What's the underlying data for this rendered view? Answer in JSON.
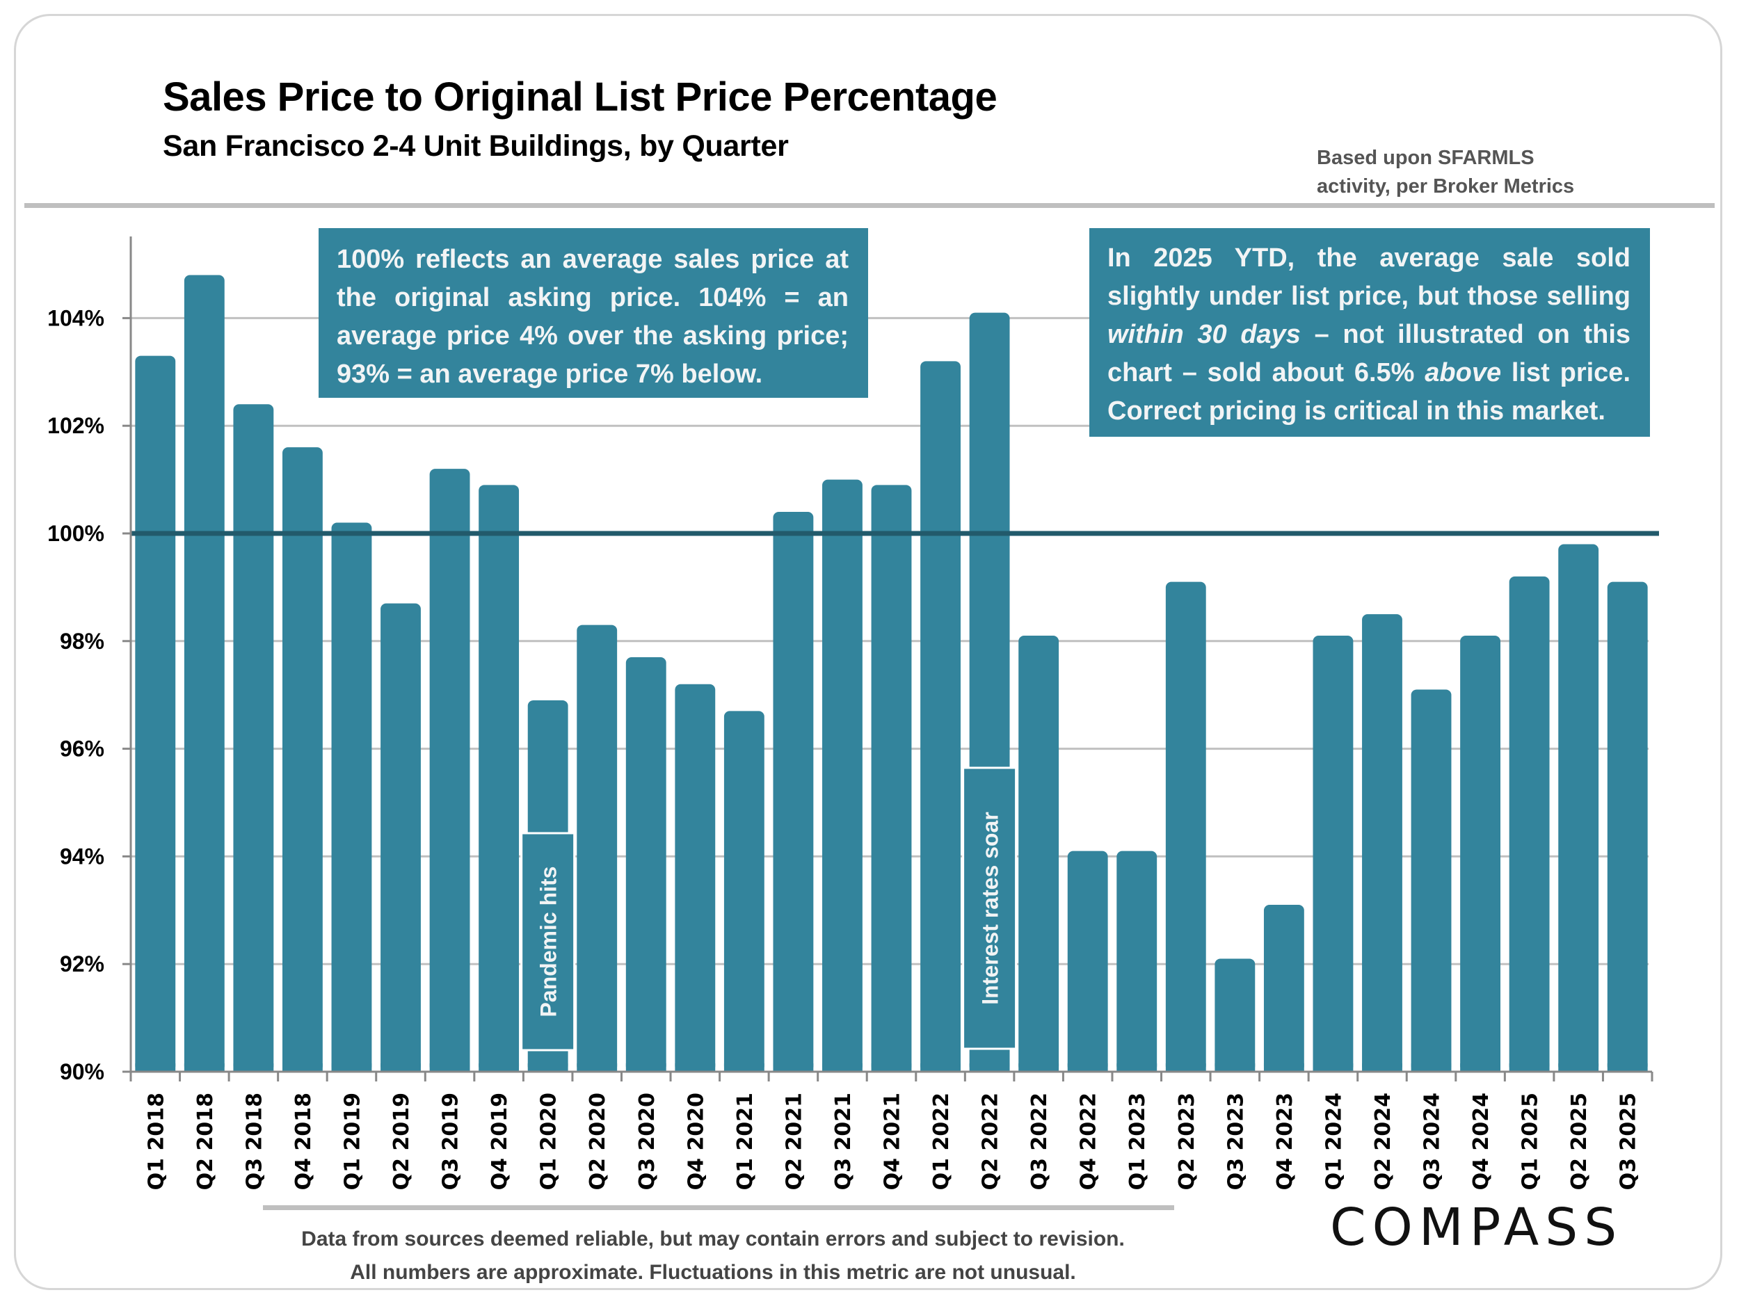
{
  "header": {
    "title": "Sales Price to Original List Price Percentage",
    "subtitle": "San Francisco 2-4 Unit Buildings, by Quarter",
    "source_line1": "Based upon SFARMLS",
    "source_line2": "activity, per Broker Metrics"
  },
  "notes": {
    "left": "100% reflects an average sales price at the original asking price. 104% = an average price 4% over the asking price; 93% = an average price 7% below.",
    "right_part1": "In 2025 YTD, the average sale sold slightly under list price, but those selling ",
    "right_italic1": "within 30 days",
    "right_part2": " – not illustrated on this chart – sold about 6.5% ",
    "right_italic2": "above",
    "right_part3": " list price. Correct pricing is critical in this market."
  },
  "footer": {
    "line1": "Data from sources deemed reliable, but may contain errors and subject to revision.",
    "line2": "All numbers are approximate. Fluctuations in this metric are not unusual.",
    "logo": "COMPASS"
  },
  "colors": {
    "bar": "#33849c",
    "reference_line": "#225a6b",
    "gridline": "#c0c0c0",
    "axis": "#888888",
    "annotation_box": "#33849c"
  },
  "chart_data": {
    "type": "bar",
    "title": "Sales Price to Original List Price Percentage",
    "subtitle": "San Francisco 2-4 Unit Buildings, by Quarter",
    "xlabel": "",
    "ylabel": "",
    "ylim": [
      90,
      105
    ],
    "yticks": [
      90,
      92,
      94,
      96,
      98,
      100,
      102,
      104
    ],
    "ytick_labels": [
      "90%",
      "92%",
      "94%",
      "96%",
      "98%",
      "100%",
      "102%",
      "104%"
    ],
    "grid": true,
    "reference_line": {
      "value": 100,
      "label": "100%"
    },
    "categories": [
      "Q1 2018",
      "Q2 2018",
      "Q3 2018",
      "Q4 2018",
      "Q1 2019",
      "Q2 2019",
      "Q3 2019",
      "Q4 2019",
      "Q1 2020",
      "Q2 2020",
      "Q3 2020",
      "Q4 2020",
      "Q1 2021",
      "Q2 2021",
      "Q3 2021",
      "Q4 2021",
      "Q1 2022",
      "Q2 2022",
      "Q3 2022",
      "Q4 2022",
      "Q1 2023",
      "Q2 2023",
      "Q3 2023",
      "Q4 2023",
      "Q1 2024",
      "Q2 2024",
      "Q3 2024",
      "Q4 2024",
      "Q1 2025",
      "Q2 2025",
      "Q3 2025"
    ],
    "values": [
      103.3,
      104.8,
      102.4,
      101.6,
      100.2,
      98.7,
      101.2,
      100.9,
      96.9,
      98.3,
      97.7,
      97.2,
      96.7,
      100.4,
      101.0,
      100.9,
      103.2,
      104.1,
      98.1,
      94.1,
      94.1,
      99.1,
      92.1,
      93.1,
      98.1,
      98.5,
      97.1,
      98.1,
      99.2,
      99.8,
      99.1
    ],
    "annotations": [
      {
        "category": "Q1 2020",
        "text": "Pandemic hits",
        "orientation": "vertical"
      },
      {
        "category": "Q2 2022",
        "text": "Interest rates soar",
        "orientation": "vertical"
      }
    ]
  }
}
